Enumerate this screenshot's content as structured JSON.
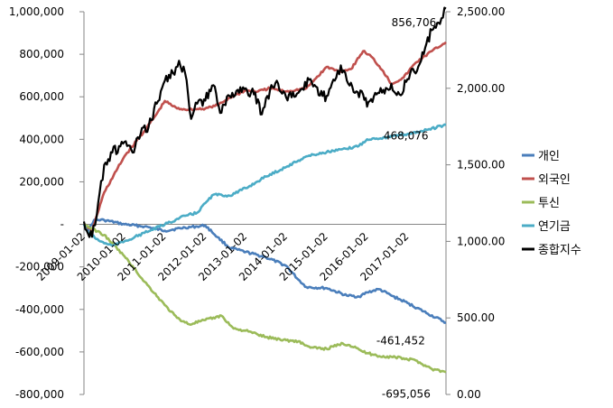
{
  "chart_data": {
    "type": "line",
    "left_axis": {
      "ticks": [
        1000000,
        800000,
        600000,
        400000,
        200000,
        0,
        -200000,
        -400000,
        -600000,
        -800000
      ],
      "tick_labels": [
        "1,000,000",
        "800,000",
        "600,000",
        "400,000",
        "200,000",
        "-",
        "-200,000",
        "-400,000",
        "-600,000",
        "-800,000"
      ],
      "ylim": [
        -800000,
        1000000
      ]
    },
    "right_axis": {
      "ticks": [
        2500,
        2000,
        1500,
        1000,
        500,
        0
      ],
      "tick_labels": [
        "2,500.00",
        "2,000.00",
        "1,500.00",
        "1,000.00",
        "500.00",
        "0.00"
      ],
      "ylim": [
        0,
        2500
      ]
    },
    "x_axis": {
      "range": [
        2009.0,
        2017.95
      ],
      "ticks": [
        2009.0,
        2010.0,
        2011.0,
        2012.0,
        2013.0,
        2014.0,
        2015.0,
        2016.0,
        2017.0
      ],
      "tick_labels": [
        "2009-01-02",
        "2010-01-02",
        "2011-01-02",
        "2012-01-02",
        "2013-01-02",
        "2014-01-02",
        "2015-01-02",
        "2016-01-02",
        "2017-01-02"
      ]
    },
    "legend": {
      "position": "right"
    },
    "series": [
      {
        "name": "개인",
        "color": "#4a7ebb",
        "axis": "left",
        "points": [
          [
            2009.0,
            0
          ],
          [
            2009.1,
            -30000
          ],
          [
            2009.25,
            20000
          ],
          [
            2009.5,
            20000
          ],
          [
            2010.0,
            0
          ],
          [
            2010.5,
            -10000
          ],
          [
            2011.0,
            -30000
          ],
          [
            2011.5,
            -15000
          ],
          [
            2011.8,
            -10000
          ],
          [
            2012.0,
            -5000
          ],
          [
            2012.3,
            -60000
          ],
          [
            2012.6,
            -110000
          ],
          [
            2013.0,
            -130000
          ],
          [
            2013.5,
            -155000
          ],
          [
            2014.0,
            -195000
          ],
          [
            2014.3,
            -260000
          ],
          [
            2014.5,
            -295000
          ],
          [
            2015.0,
            -300000
          ],
          [
            2015.5,
            -335000
          ],
          [
            2015.8,
            -340000
          ],
          [
            2016.0,
            -320000
          ],
          [
            2016.3,
            -305000
          ],
          [
            2016.6,
            -335000
          ],
          [
            2017.0,
            -370000
          ],
          [
            2017.5,
            -420000
          ],
          [
            2017.95,
            -461452
          ]
        ]
      },
      {
        "name": "외국인",
        "color": "#c0504d",
        "axis": "left",
        "points": [
          [
            2009.0,
            0
          ],
          [
            2009.2,
            -30000
          ],
          [
            2009.5,
            150000
          ],
          [
            2010.0,
            320000
          ],
          [
            2010.5,
            440000
          ],
          [
            2010.8,
            520000
          ],
          [
            2011.0,
            580000
          ],
          [
            2011.3,
            545000
          ],
          [
            2011.6,
            540000
          ],
          [
            2012.0,
            545000
          ],
          [
            2012.3,
            560000
          ],
          [
            2012.6,
            595000
          ],
          [
            2013.0,
            630000
          ],
          [
            2013.3,
            625000
          ],
          [
            2013.6,
            640000
          ],
          [
            2014.0,
            625000
          ],
          [
            2014.5,
            640000
          ],
          [
            2015.0,
            740000
          ],
          [
            2015.3,
            720000
          ],
          [
            2015.6,
            730000
          ],
          [
            2015.9,
            815000
          ],
          [
            2016.1,
            790000
          ],
          [
            2016.4,
            720000
          ],
          [
            2016.6,
            660000
          ],
          [
            2016.9,
            690000
          ],
          [
            2017.2,
            760000
          ],
          [
            2017.6,
            815000
          ],
          [
            2017.95,
            856706
          ]
        ]
      },
      {
        "name": "투신",
        "color": "#9bbb59",
        "axis": "left",
        "points": [
          [
            2009.0,
            0
          ],
          [
            2009.2,
            -20000
          ],
          [
            2009.5,
            -50000
          ],
          [
            2010.0,
            -150000
          ],
          [
            2010.5,
            -270000
          ],
          [
            2011.0,
            -380000
          ],
          [
            2011.3,
            -440000
          ],
          [
            2011.6,
            -470000
          ],
          [
            2012.0,
            -450000
          ],
          [
            2012.4,
            -430000
          ],
          [
            2012.7,
            -490000
          ],
          [
            2013.0,
            -500000
          ],
          [
            2013.5,
            -530000
          ],
          [
            2014.0,
            -545000
          ],
          [
            2014.3,
            -550000
          ],
          [
            2014.6,
            -580000
          ],
          [
            2015.0,
            -585000
          ],
          [
            2015.4,
            -560000
          ],
          [
            2015.7,
            -575000
          ],
          [
            2015.9,
            -600000
          ],
          [
            2016.3,
            -620000
          ],
          [
            2016.7,
            -625000
          ],
          [
            2017.2,
            -640000
          ],
          [
            2017.6,
            -680000
          ],
          [
            2017.95,
            -695056
          ]
        ]
      },
      {
        "name": "연기금",
        "color": "#4bacc6",
        "axis": "left",
        "points": [
          [
            2009.0,
            0
          ],
          [
            2009.1,
            -40000
          ],
          [
            2009.4,
            -80000
          ],
          [
            2009.7,
            -100000
          ],
          [
            2010.0,
            -80000
          ],
          [
            2010.5,
            -40000
          ],
          [
            2011.0,
            0
          ],
          [
            2011.5,
            40000
          ],
          [
            2011.8,
            55000
          ],
          [
            2012.0,
            100000
          ],
          [
            2012.2,
            140000
          ],
          [
            2012.6,
            135000
          ],
          [
            2013.0,
            170000
          ],
          [
            2013.5,
            225000
          ],
          [
            2014.0,
            270000
          ],
          [
            2014.5,
            320000
          ],
          [
            2015.0,
            340000
          ],
          [
            2015.5,
            355000
          ],
          [
            2015.8,
            370000
          ],
          [
            2016.0,
            400000
          ],
          [
            2016.5,
            410000
          ],
          [
            2017.0,
            425000
          ],
          [
            2017.5,
            445000
          ],
          [
            2017.95,
            468076
          ]
        ]
      },
      {
        "name": "종합지수",
        "color": "#000000",
        "axis": "right",
        "points": [
          [
            2009.0,
            1130
          ],
          [
            2009.1,
            1050
          ],
          [
            2009.2,
            1030
          ],
          [
            2009.35,
            1250
          ],
          [
            2009.5,
            1500
          ],
          [
            2009.7,
            1580
          ],
          [
            2009.9,
            1620
          ],
          [
            2010.0,
            1650
          ],
          [
            2010.2,
            1580
          ],
          [
            2010.4,
            1700
          ],
          [
            2010.6,
            1750
          ],
          [
            2010.8,
            1900
          ],
          [
            2011.0,
            2050
          ],
          [
            2011.2,
            2100
          ],
          [
            2011.35,
            2180
          ],
          [
            2011.5,
            2100
          ],
          [
            2011.65,
            1800
          ],
          [
            2011.8,
            1900
          ],
          [
            2012.0,
            1920
          ],
          [
            2012.2,
            2020
          ],
          [
            2012.4,
            1840
          ],
          [
            2012.6,
            1950
          ],
          [
            2012.8,
            1990
          ],
          [
            2013.0,
            2000
          ],
          [
            2013.2,
            1960
          ],
          [
            2013.4,
            1830
          ],
          [
            2013.6,
            1990
          ],
          [
            2013.8,
            2030
          ],
          [
            2014.0,
            1940
          ],
          [
            2014.3,
            1970
          ],
          [
            2014.6,
            2060
          ],
          [
            2014.9,
            1950
          ],
          [
            2015.0,
            1950
          ],
          [
            2015.2,
            2050
          ],
          [
            2015.35,
            2150
          ],
          [
            2015.5,
            2050
          ],
          [
            2015.7,
            1970
          ],
          [
            2015.9,
            1960
          ],
          [
            2016.0,
            1880
          ],
          [
            2016.2,
            1970
          ],
          [
            2016.4,
            1990
          ],
          [
            2016.6,
            2030
          ],
          [
            2016.8,
            1960
          ],
          [
            2017.0,
            2060
          ],
          [
            2017.3,
            2160
          ],
          [
            2017.6,
            2380
          ],
          [
            2017.8,
            2420
          ],
          [
            2017.95,
            2520
          ]
        ]
      }
    ],
    "annotations": [
      {
        "text": "856,706",
        "x": 2017.45,
        "y": 856706,
        "axis": "left",
        "dx": -38,
        "dy": -18
      },
      {
        "text": "468,076",
        "x": 2017.3,
        "y": 468076,
        "axis": "left",
        "dx": -40,
        "dy": 16
      },
      {
        "text": "-461,452",
        "x": 2017.3,
        "y": -461452,
        "axis": "left",
        "dx": -48,
        "dy": 24
      },
      {
        "text": "-695,056",
        "x": 2017.3,
        "y": -695056,
        "axis": "left",
        "dx": -42,
        "dy": 28
      }
    ]
  }
}
